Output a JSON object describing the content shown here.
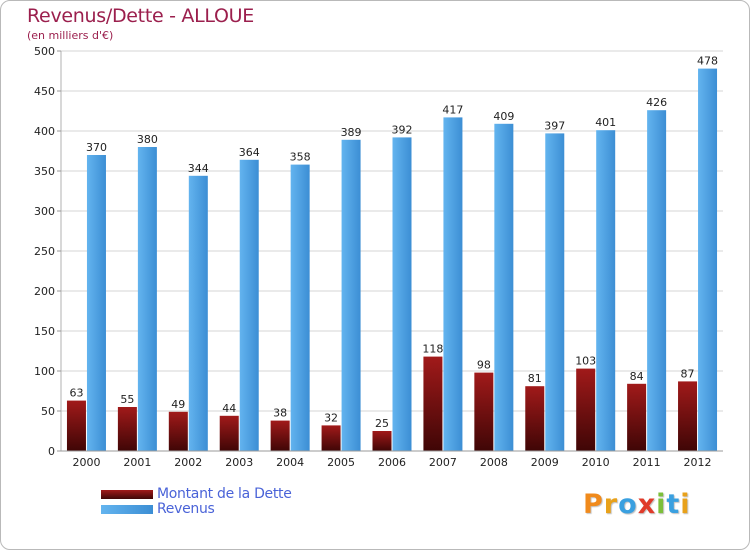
{
  "title": "Revenus/Dette - ALLOUE",
  "subtitle": "(en milliers d'€)",
  "legend": [
    {
      "label": "Montant de la Dette",
      "color": "#7a0f0f"
    },
    {
      "label": "Revenus",
      "color": "#4a9fe2"
    }
  ],
  "logo": {
    "letters": [
      "P",
      "r",
      "o",
      "x",
      "i",
      "t",
      "i"
    ]
  },
  "colors": {
    "debt_top": "#a11a1a",
    "debt_bottom": "#3f0606",
    "rev_light": "#63b4ef",
    "rev_dark": "#3c8ed4",
    "grid": "#d4d4d4",
    "axis_text": "#222222",
    "title": "#9b1f4d",
    "legend_text": "#4a63d8"
  },
  "chart_data": {
    "type": "bar",
    "title": "Revenus/Dette - ALLOUE",
    "ylabel": "(en milliers d'€)",
    "xlabel": "",
    "categories": [
      "2000",
      "2001",
      "2002",
      "2003",
      "2004",
      "2005",
      "2006",
      "2007",
      "2008",
      "2009",
      "2010",
      "2011",
      "2012"
    ],
    "series": [
      {
        "name": "Montant de la Dette",
        "values": [
          63,
          55,
          49,
          44,
          38,
          32,
          25,
          118,
          98,
          81,
          103,
          84,
          87
        ]
      },
      {
        "name": "Revenus",
        "values": [
          370,
          380,
          344,
          364,
          358,
          389,
          392,
          417,
          409,
          397,
          401,
          426,
          478
        ]
      }
    ],
    "ylim": [
      0,
      500
    ],
    "yticks": [
      0,
      50,
      100,
      150,
      200,
      250,
      300,
      350,
      400,
      450,
      500
    ],
    "grid": true,
    "legend_position": "bottom-left"
  }
}
